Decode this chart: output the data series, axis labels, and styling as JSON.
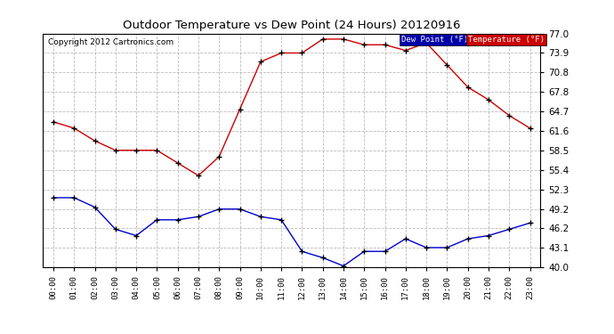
{
  "title": "Outdoor Temperature vs Dew Point (24 Hours) 20120916",
  "copyright": "Copyright 2012 Cartronics.com",
  "x_labels": [
    "00:00",
    "01:00",
    "02:00",
    "03:00",
    "04:00",
    "05:00",
    "06:00",
    "07:00",
    "08:00",
    "09:00",
    "10:00",
    "11:00",
    "12:00",
    "13:00",
    "14:00",
    "15:00",
    "16:00",
    "17:00",
    "18:00",
    "19:00",
    "20:00",
    "21:00",
    "22:00",
    "23:00"
  ],
  "temperature": [
    63.0,
    62.0,
    60.0,
    58.5,
    58.5,
    58.5,
    56.5,
    54.5,
    57.5,
    65.0,
    72.5,
    73.9,
    73.9,
    76.1,
    76.1,
    75.2,
    75.2,
    74.3,
    75.5,
    72.0,
    68.5,
    66.5,
    64.0,
    62.0
  ],
  "dew_point": [
    51.0,
    51.0,
    49.5,
    46.0,
    45.0,
    47.5,
    47.5,
    48.0,
    49.2,
    49.2,
    48.0,
    47.5,
    42.5,
    41.5,
    40.2,
    42.5,
    42.5,
    44.5,
    43.1,
    43.1,
    44.5,
    45.0,
    46.0,
    47.0
  ],
  "temp_color": "#cc0000",
  "dew_color": "#0000cc",
  "ylim_min": 40.0,
  "ylim_max": 77.0,
  "yticks": [
    40.0,
    43.1,
    46.2,
    49.2,
    52.3,
    55.4,
    58.5,
    61.6,
    64.7,
    67.8,
    70.8,
    73.9,
    77.0
  ],
  "background_color": "#ffffff",
  "plot_bg_color": "#ffffff",
  "grid_color": "#aaaaaa",
  "legend_dew_label": "Dew Point (°F)",
  "legend_temp_label": "Temperature (°F)",
  "legend_dew_bg": "#0000aa",
  "legend_temp_bg": "#cc0000"
}
